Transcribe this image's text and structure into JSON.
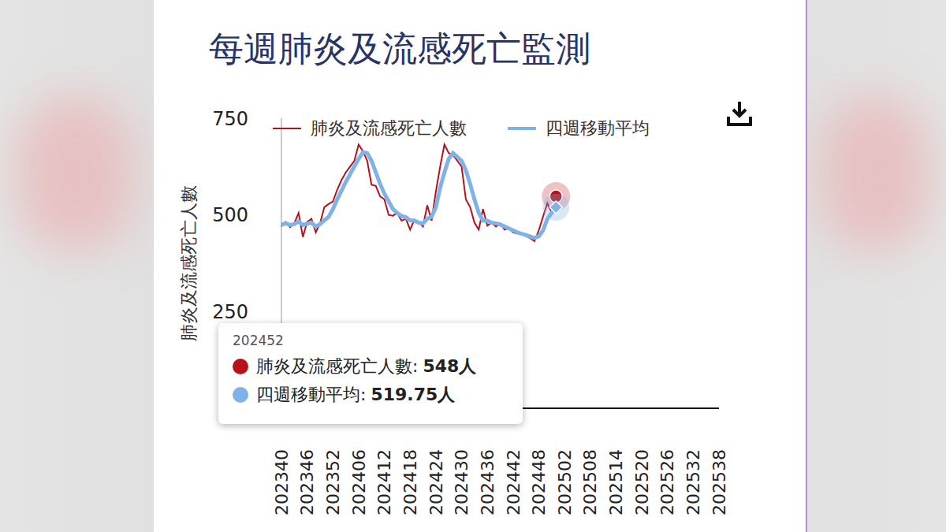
{
  "chart_data": {
    "type": "line",
    "title": "每週肺炎及流感死亡監測",
    "y_label": "肺炎及流感死亡人數",
    "categories": [
      "202340",
      null,
      null,
      null,
      null,
      null,
      "202346",
      null,
      null,
      null,
      null,
      null,
      "202352",
      null,
      null,
      null,
      null,
      null,
      "202406",
      null,
      null,
      null,
      null,
      null,
      "202412",
      null,
      null,
      null,
      null,
      null,
      "202418",
      null,
      null,
      null,
      null,
      null,
      "202424",
      null,
      null,
      null,
      null,
      null,
      "202430",
      null,
      null,
      null,
      null,
      null,
      "202436",
      null,
      null,
      null,
      null,
      null,
      "202442",
      null,
      null,
      null,
      null,
      null,
      "202448",
      null,
      null,
      null,
      null,
      null,
      "202502",
      null,
      null,
      null,
      null,
      null,
      "202508",
      null,
      null,
      null,
      null,
      null,
      "202514",
      null,
      null,
      null,
      null,
      null,
      "202520",
      null,
      null,
      null,
      null,
      null,
      "202526",
      null,
      null,
      null,
      null,
      null,
      "202532",
      null,
      null,
      null,
      null,
      null,
      "202538"
    ],
    "series": [
      {
        "name": "肺炎及流感死亡人數",
        "color": "#b5121b",
        "values": [
          470,
          482,
          468,
          478,
          505,
          443,
          482,
          490,
          455,
          478,
          520,
          528,
          535,
          565,
          590,
          610,
          625,
          640,
          682,
          665,
          640,
          578,
          575,
          548,
          540,
          500,
          498,
          505,
          485,
          490,
          462,
          488,
          482,
          470,
          525,
          485,
          560,
          625,
          682,
          660,
          655,
          640,
          625,
          540,
          520,
          480,
          462,
          515,
          472,
          480,
          470,
          478,
          462,
          465,
          455,
          452,
          450,
          445,
          440,
          432,
          460,
          496,
          530,
          505,
          548,
          null,
          null,
          null,
          null,
          null,
          null,
          null,
          null,
          null,
          null,
          null,
          null,
          null,
          null,
          null,
          null,
          null,
          null,
          null,
          null,
          null,
          null,
          null,
          null,
          null,
          null,
          null,
          null,
          null,
          null,
          null,
          null,
          null,
          null,
          null,
          null,
          null,
          null
        ]
      },
      {
        "name": "四週移動平均",
        "color": "#7fb3e8",
        "values": [
          475,
          478,
          474,
          476,
          483,
          474,
          477,
          480,
          470,
          476,
          486,
          495,
          515,
          540,
          562,
          585,
          605,
          625,
          645,
          662,
          660,
          640,
          610,
          580,
          555,
          535,
          515,
          505,
          497,
          494,
          486,
          485,
          480,
          478,
          490,
          495,
          520,
          570,
          610,
          645,
          660,
          650,
          640,
          615,
          580,
          540,
          505,
          485,
          485,
          480,
          478,
          475,
          470,
          465,
          460,
          455,
          451,
          448,
          444,
          440,
          445,
          460,
          490,
          505,
          519.75,
          null,
          null,
          null,
          null,
          null,
          null,
          null,
          null,
          null,
          null,
          null,
          null,
          null,
          null,
          null,
          null,
          null,
          null,
          null,
          null,
          null,
          null,
          null,
          null,
          null,
          null,
          null,
          null,
          null,
          null,
          null,
          null,
          null,
          null,
          null,
          null,
          null,
          null
        ]
      }
    ],
    "ylim": [
      0,
      750
    ],
    "yticks": [
      250,
      500,
      750
    ],
    "grid": false,
    "annotation": {
      "title": "202452",
      "items": [
        {
          "text": "肺炎及流感死亡人數:",
          "value": 548,
          "value_label": "548人",
          "color": "#b5121b"
        },
        {
          "text": "四週移動平均:",
          "value": 519.75,
          "value_label": "519.75人",
          "color": "#7fb3e8"
        }
      ]
    }
  }
}
